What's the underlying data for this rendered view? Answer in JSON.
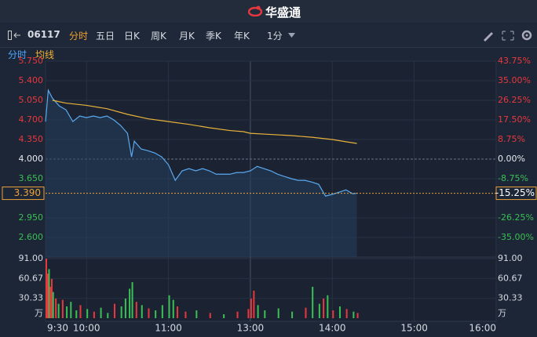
{
  "header": {
    "brand": "华盛通"
  },
  "toolbar": {
    "code": "06117",
    "tabs": [
      "分时",
      "五日",
      "日K",
      "周K",
      "月K",
      "季K",
      "年K"
    ],
    "interval": "1分"
  },
  "subtabs": [
    "分时",
    "均线"
  ],
  "chart_data": [
    {
      "type": "line",
      "xticks": [
        "9:30",
        "10:00",
        "11:00",
        "13:00",
        "14:00",
        "15:00",
        "16:00"
      ],
      "ylim": [
        2.25,
        5.75
      ],
      "yticks": [
        {
          "value": 5.75,
          "label": "5.750"
        },
        {
          "value": 5.4,
          "label": "5.400"
        },
        {
          "value": 5.05,
          "label": "5.050"
        },
        {
          "value": 4.7,
          "label": "4.700"
        },
        {
          "value": 4.35,
          "label": "4.350"
        },
        {
          "value": 4.0,
          "label": "4.000"
        },
        {
          "value": 3.65,
          "label": "3.650"
        },
        {
          "value": 2.95,
          "label": "2.950"
        },
        {
          "value": 2.6,
          "label": "2.600"
        }
      ],
      "y2lim": [
        -43.75,
        43.75
      ],
      "y2ticks": [
        {
          "value": 43.75,
          "label": "43.75%"
        },
        {
          "value": 35,
          "label": "35.00%"
        },
        {
          "value": 26.25,
          "label": "26.25%"
        },
        {
          "value": 17.5,
          "label": "17.50%"
        },
        {
          "value": 8.75,
          "label": "8.75%"
        },
        {
          "value": 0,
          "label": "0.00%"
        },
        {
          "value": -8.75,
          "label": "-8.75%"
        },
        {
          "value": -26.25,
          "label": "-26.25%"
        },
        {
          "value": -35,
          "label": "-35.00%"
        }
      ],
      "last": {
        "value": 3.39,
        "label": "3.390"
      },
      "last_change": {
        "value": -15.25,
        "label": "-15.25%"
      },
      "series": [
        {
          "name": "分时",
          "color": "#5aa9f0",
          "x": [
            "9:30",
            "9:32",
            "9:35",
            "9:40",
            "9:45",
            "9:50",
            "9:55",
            "10:00",
            "10:05",
            "10:10",
            "10:15",
            "10:20",
            "10:25",
            "10:30",
            "10:33",
            "10:35",
            "10:40",
            "10:45",
            "10:50",
            "10:55",
            "11:00",
            "11:05",
            "11:10",
            "11:15",
            "11:20",
            "11:25",
            "11:30",
            "11:35",
            "11:40",
            "11:45",
            "11:50",
            "11:55",
            "13:00",
            "13:05",
            "13:10",
            "13:15",
            "13:20",
            "13:25",
            "13:30",
            "13:35",
            "13:40",
            "13:45",
            "13:50",
            "13:55",
            "14:00",
            "14:05",
            "14:10",
            "14:15",
            "14:18"
          ],
          "values": [
            4.67,
            5.23,
            5.09,
            4.95,
            4.88,
            4.67,
            4.77,
            4.74,
            4.77,
            4.74,
            4.77,
            4.7,
            4.6,
            4.46,
            4.04,
            4.32,
            4.18,
            4.15,
            4.11,
            4.04,
            3.9,
            3.62,
            3.79,
            3.83,
            3.79,
            3.83,
            3.79,
            3.73,
            3.73,
            3.73,
            3.76,
            3.76,
            3.79,
            3.87,
            3.83,
            3.79,
            3.73,
            3.69,
            3.65,
            3.62,
            3.62,
            3.59,
            3.55,
            3.34,
            3.37,
            3.41,
            3.45,
            3.38,
            3.39
          ]
        },
        {
          "name": "均线",
          "color": "#e9b23a",
          "x": [
            "9:35",
            "9:45",
            "10:00",
            "10:15",
            "10:30",
            "10:45",
            "11:00",
            "11:15",
            "11:30",
            "11:45",
            "11:55",
            "13:00",
            "13:15",
            "13:30",
            "13:45",
            "14:00",
            "14:10",
            "14:18"
          ],
          "values": [
            5.05,
            5.0,
            4.96,
            4.9,
            4.8,
            4.72,
            4.67,
            4.62,
            4.56,
            4.51,
            4.49,
            4.46,
            4.44,
            4.42,
            4.39,
            4.35,
            4.31,
            4.28
          ]
        }
      ]
    },
    {
      "type": "bar",
      "ylabel": "万",
      "ylim": [
        0,
        91
      ],
      "yticks": [
        {
          "value": 91,
          "label": "91.00"
        },
        {
          "value": 60.67,
          "label": "60.67"
        },
        {
          "value": 30.33,
          "label": "30.33"
        }
      ],
      "x": [
        "9:30",
        "9:31",
        "9:32",
        "9:33",
        "9:34",
        "9:35",
        "9:37",
        "9:39",
        "9:42",
        "9:45",
        "9:48",
        "9:52",
        "9:55",
        "10:00",
        "10:05",
        "10:10",
        "10:15",
        "10:20",
        "10:25",
        "10:28",
        "10:31",
        "10:33",
        "10:36",
        "10:40",
        "10:45",
        "10:50",
        "10:55",
        "11:00",
        "11:03",
        "11:06",
        "11:12",
        "11:20",
        "11:30",
        "11:40",
        "11:50",
        "11:58",
        "13:00",
        "13:02",
        "13:05",
        "13:10",
        "13:20",
        "13:30",
        "13:40",
        "13:45",
        "13:50",
        "13:53",
        "13:56",
        "14:00",
        "14:05",
        "14:10",
        "14:15",
        "14:18"
      ],
      "values": [
        91,
        68,
        75,
        48,
        60,
        40,
        30,
        22,
        28,
        18,
        25,
        12,
        20,
        14,
        10,
        16,
        8,
        22,
        18,
        30,
        45,
        55,
        25,
        20,
        15,
        12,
        20,
        35,
        28,
        18,
        10,
        12,
        8,
        6,
        10,
        14,
        30,
        42,
        20,
        12,
        15,
        10,
        16,
        48,
        22,
        30,
        35,
        12,
        18,
        14,
        10,
        8
      ],
      "colors": [
        "#e8383d",
        "#e8383d",
        "#3bbf55",
        "#e8383d",
        "#e8383d",
        "#3bbf55",
        "#e8383d",
        "#3bbf55",
        "#e8383d",
        "#3bbf55",
        "#3bbf55",
        "#3bbf55",
        "#e8383d",
        "#3bbf55",
        "#e8383d",
        "#3bbf55",
        "#3bbf55",
        "#e8383d",
        "#3bbf55",
        "#3bbf55",
        "#3bbf55",
        "#3bbf55",
        "#e8383d",
        "#3bbf55",
        "#e8383d",
        "#3bbf55",
        "#3bbf55",
        "#3bbf55",
        "#3bbf55",
        "#e8383d",
        "#e8383d",
        "#3bbf55",
        "#e8383d",
        "#3bbf55",
        "#e8383d",
        "#e8383d",
        "#e8383d",
        "#e8383d",
        "#3bbf55",
        "#3bbf55",
        "#3bbf55",
        "#3bbf55",
        "#e8383d",
        "#3bbf55",
        "#3bbf55",
        "#e8383d",
        "#3bbf55",
        "#e8383d",
        "#3bbf55",
        "#e8383d",
        "#3bbf55",
        "#e8383d"
      ]
    }
  ]
}
